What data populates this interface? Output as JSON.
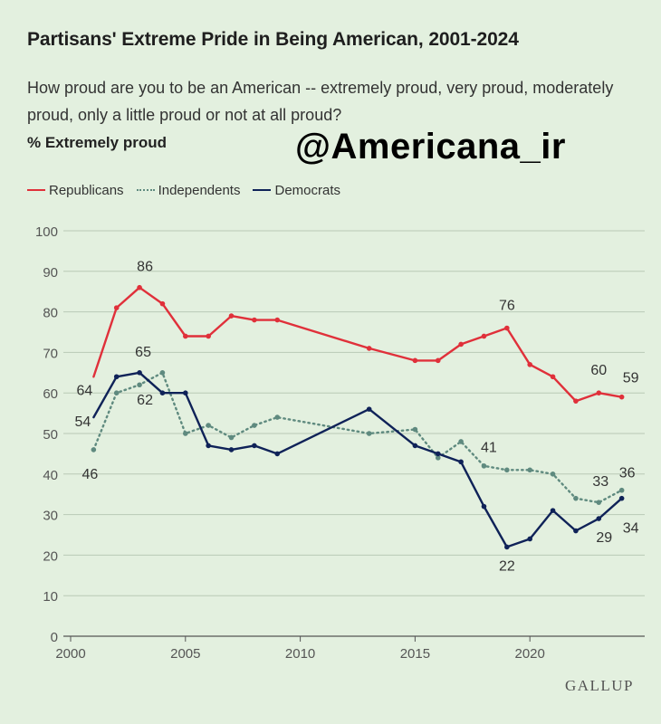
{
  "header": {
    "title": "Partisans' Extreme Pride in Being American, 2001-2024",
    "subtitle": "How proud are you to be an American -- extremely proud, very proud, moderately proud, only a little proud or not at all proud?",
    "unit_label": "% Extremely proud",
    "watermark": "@Americana_ir"
  },
  "legend": {
    "republicans": "Republicans",
    "independents": "Independents",
    "democrats": "Democrats"
  },
  "colors": {
    "republicans": "#e0303a",
    "independents": "#5f8a7f",
    "democrats": "#0f2258",
    "grid": "#b9c9b6",
    "axis_text": "#555555"
  },
  "footer": {
    "logo": "GALLUP"
  },
  "chart_data": {
    "type": "line",
    "title": "Partisans' Extreme Pride in Being American, 2001-2024",
    "xlabel": "",
    "ylabel": "% Extremely proud",
    "xlim": [
      2000,
      2025
    ],
    "ylim": [
      0,
      100
    ],
    "xticks": [
      2000,
      2005,
      2010,
      2015,
      2020
    ],
    "yticks": [
      0,
      10,
      20,
      30,
      40,
      50,
      60,
      70,
      80,
      90,
      100
    ],
    "grid": true,
    "legend_position": "top-left",
    "series": [
      {
        "name": "Republicans",
        "style": "solid",
        "x": [
          2001,
          2002,
          2003,
          2004,
          2005,
          2006,
          2007,
          2008,
          2009,
          2013,
          2015,
          2016,
          2017,
          2018,
          2019,
          2020,
          2021,
          2022,
          2023,
          2024
        ],
        "values": [
          64,
          81,
          86,
          82,
          74,
          74,
          79,
          78,
          78,
          71,
          68,
          68,
          72,
          74,
          76,
          67,
          64,
          58,
          60,
          59
        ],
        "labels": [
          {
            "x": 2001,
            "text": "64"
          },
          {
            "x": 2003,
            "text": "86"
          },
          {
            "x": 2019,
            "text": "76"
          },
          {
            "x": 2023,
            "text": "60"
          },
          {
            "x": 2024,
            "text": "59"
          }
        ]
      },
      {
        "name": "Independents",
        "style": "dotted",
        "x": [
          2001,
          2002,
          2003,
          2004,
          2005,
          2006,
          2007,
          2008,
          2009,
          2013,
          2015,
          2016,
          2017,
          2018,
          2019,
          2020,
          2021,
          2022,
          2023,
          2024
        ],
        "values": [
          46,
          60,
          62,
          65,
          50,
          52,
          49,
          52,
          54,
          50,
          51,
          44,
          48,
          42,
          41,
          41,
          40,
          34,
          33,
          36
        ],
        "labels": [
          {
            "x": 2001,
            "text": "46"
          },
          {
            "x": 2003,
            "text": "62"
          },
          {
            "x": 2019,
            "text": "41"
          },
          {
            "x": 2023,
            "text": "33"
          },
          {
            "x": 2024,
            "text": "36"
          }
        ]
      },
      {
        "name": "Democrats",
        "style": "solid",
        "x": [
          2001,
          2002,
          2003,
          2004,
          2005,
          2006,
          2007,
          2008,
          2009,
          2013,
          2015,
          2016,
          2017,
          2018,
          2019,
          2020,
          2021,
          2022,
          2023,
          2024
        ],
        "values": [
          54,
          64,
          65,
          60,
          60,
          47,
          46,
          47,
          45,
          56,
          47,
          45,
          43,
          32,
          22,
          24,
          31,
          26,
          29,
          34
        ],
        "labels": [
          {
            "x": 2001,
            "text": "54"
          },
          {
            "x": 2003,
            "text": "65"
          },
          {
            "x": 2019,
            "text": "22"
          },
          {
            "x": 2023,
            "text": "29"
          },
          {
            "x": 2024,
            "text": "34"
          }
        ]
      }
    ]
  }
}
